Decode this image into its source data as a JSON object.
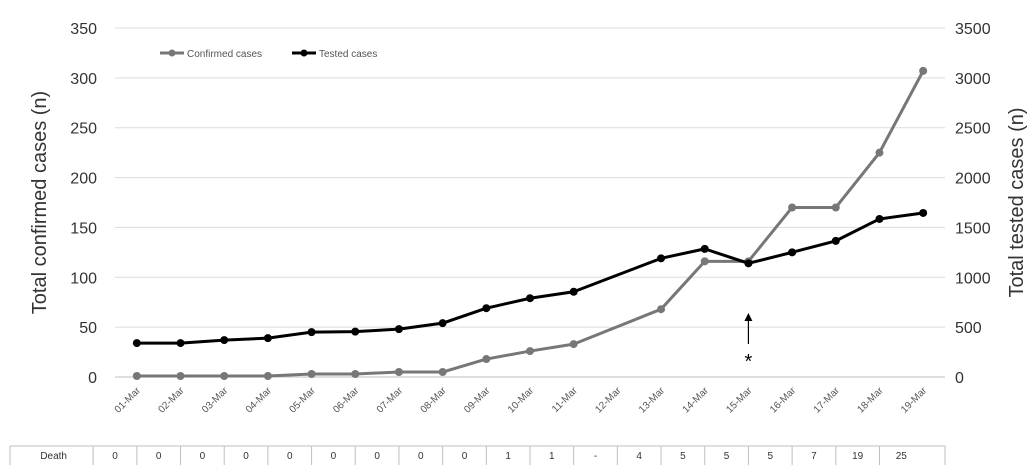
{
  "chart_data": {
    "type": "line",
    "categories": [
      "01-Mar",
      "02-Mar",
      "03-Mar",
      "04-Mar",
      "05-Mar",
      "06-Mar",
      "07-Mar",
      "08-Mar",
      "09-Mar",
      "10-Mar",
      "11-Mar",
      "12-Mar",
      "13-Mar",
      "14-Mar",
      "15-Mar",
      "16-Mar",
      "17-Mar",
      "18-Mar",
      "19-Mar"
    ],
    "series": [
      {
        "name": "Confirmed cases",
        "axis": "left",
        "color": "#777777",
        "values": [
          1,
          1,
          1,
          1,
          3,
          3,
          5,
          5,
          18,
          26,
          33,
          null,
          68,
          116,
          116,
          170,
          170,
          225,
          307
        ]
      },
      {
        "name": "Tested cases",
        "axis": "right",
        "color": "#000000",
        "values": [
          340,
          340,
          370,
          390,
          450,
          455,
          480,
          540,
          690,
          790,
          855,
          null,
          1190,
          1285,
          1140,
          1250,
          1365,
          1585,
          1645
        ]
      }
    ],
    "ylabel_left": "Total confirmed cases (n)",
    "ylabel_right": "Total tested cases (n)",
    "ylim_left": [
      0,
      350
    ],
    "ylim_right": [
      0,
      3500
    ],
    "yticks_left": [
      "0",
      "50",
      "100",
      "150",
      "200",
      "250",
      "300",
      "350"
    ],
    "yticks_right": [
      "0",
      "500",
      "1000",
      "1500",
      "2000",
      "2500",
      "3000",
      "3500"
    ],
    "grid": true,
    "legend_position": "top-left",
    "annotation": {
      "text": "*",
      "category": "15-Mar",
      "arrow": "up"
    },
    "table": {
      "row_label": "Death",
      "values": [
        "0",
        "0",
        "0",
        "0",
        "0",
        "0",
        "0",
        "0",
        "0",
        "1",
        "1",
        "-",
        "4",
        "5",
        "5",
        "5",
        "7",
        "19",
        "25"
      ]
    }
  }
}
